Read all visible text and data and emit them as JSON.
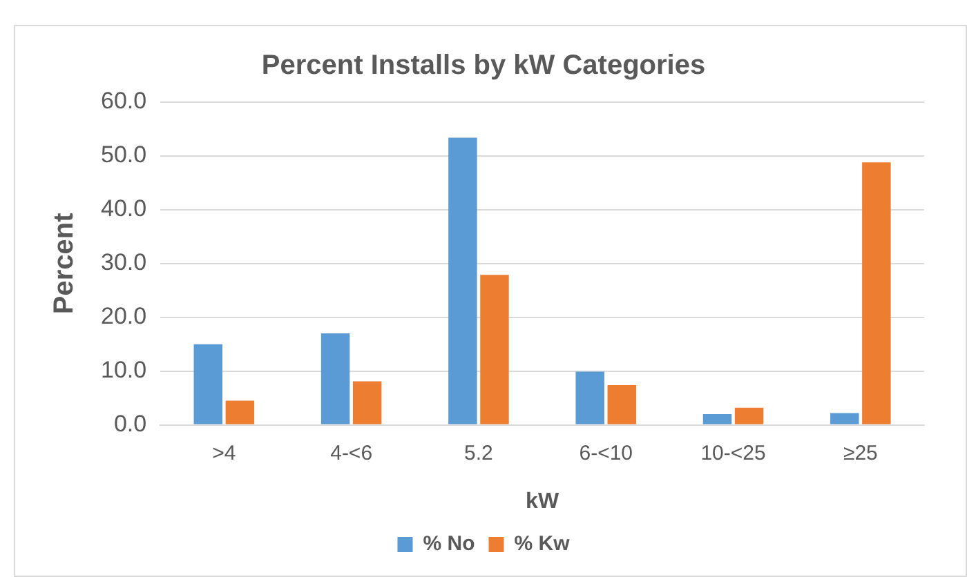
{
  "chart_data": {
    "type": "bar",
    "title": "Percent Installs by kW Categories",
    "xlabel": "kW",
    "ylabel": "Percent",
    "categories": [
      ">4",
      "4-<6",
      "5.2",
      "6-<10",
      "10-<25",
      "≥25"
    ],
    "series": [
      {
        "name": "% No",
        "color": "#5b9bd5",
        "values": [
          15.0,
          17.0,
          53.4,
          9.9,
          2.0,
          2.2
        ]
      },
      {
        "name": "% Kw",
        "color": "#ed7d31",
        "values": [
          4.5,
          8.1,
          27.9,
          7.4,
          3.2,
          48.8
        ]
      }
    ],
    "ylim": [
      0,
      60
    ],
    "yticks": [
      {
        "value": 0,
        "label": "0.0"
      },
      {
        "value": 10,
        "label": "10.0"
      },
      {
        "value": 20,
        "label": "20.0"
      },
      {
        "value": 30,
        "label": "30.0"
      },
      {
        "value": 40,
        "label": "40.0"
      },
      {
        "value": 50,
        "label": "50.0"
      },
      {
        "value": 60,
        "label": "60.0"
      }
    ],
    "grid": "y",
    "legend": "bottom"
  }
}
